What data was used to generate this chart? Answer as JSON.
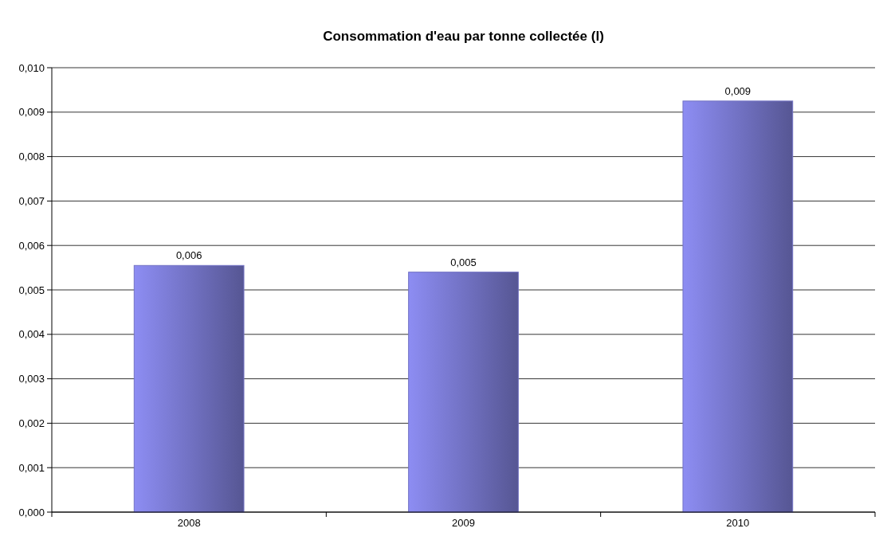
{
  "chart_data": {
    "type": "bar",
    "title": "Consommation d'eau par tonne collectée (l)",
    "categories": [
      "2008",
      "2009",
      "2010"
    ],
    "values": [
      0.00555,
      0.0054,
      0.00925
    ],
    "value_labels": [
      "0,006",
      "0,005",
      "0,009"
    ],
    "color": "#7272c4",
    "ylim": [
      0,
      0.01
    ],
    "yticks": [
      {
        "value": 0,
        "label": "0,000"
      },
      {
        "value": 0.001,
        "label": "0,001"
      },
      {
        "value": 0.002,
        "label": "0,002"
      },
      {
        "value": 0.003,
        "label": "0,003"
      },
      {
        "value": 0.004,
        "label": "0,004"
      },
      {
        "value": 0.005,
        "label": "0,005"
      },
      {
        "value": 0.006,
        "label": "0,006"
      },
      {
        "value": 0.007,
        "label": "0,007"
      },
      {
        "value": 0.008,
        "label": "0,008"
      },
      {
        "value": 0.009,
        "label": "0,009"
      },
      {
        "value": 0.01,
        "label": "0,010"
      }
    ],
    "grid": "y"
  }
}
